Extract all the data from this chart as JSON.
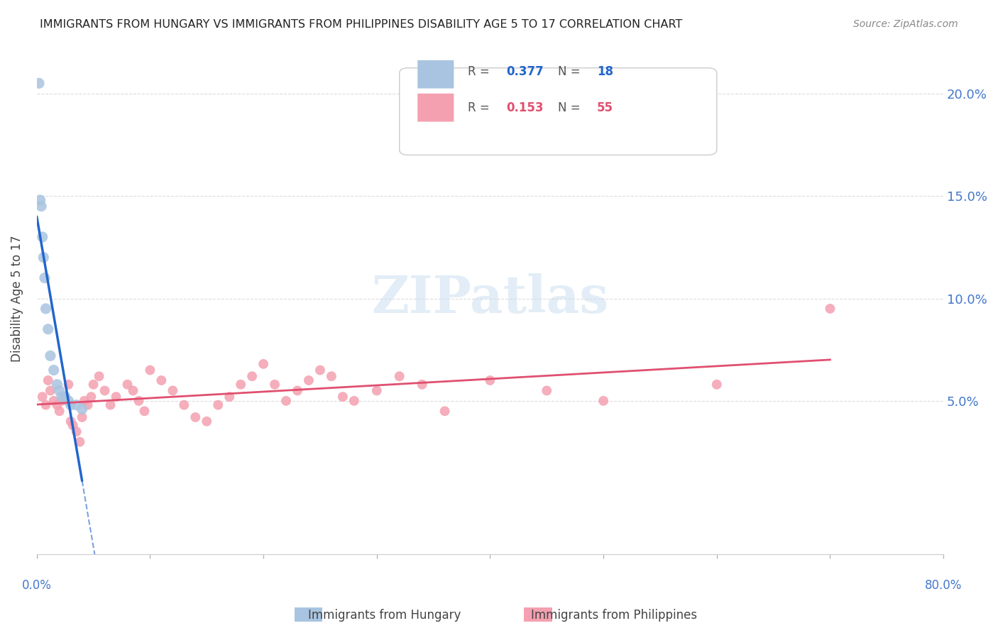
{
  "title": "IMMIGRANTS FROM HUNGARY VS IMMIGRANTS FROM PHILIPPINES DISABILITY AGE 5 TO 17 CORRELATION CHART",
  "source": "Source: ZipAtlas.com",
  "ylabel": "Disability Age 5 to 17",
  "ytick_labels": [
    "5.0%",
    "10.0%",
    "15.0%",
    "20.0%"
  ],
  "ytick_values": [
    0.05,
    0.1,
    0.15,
    0.2
  ],
  "xlim": [
    0.0,
    0.8
  ],
  "ylim": [
    -0.025,
    0.225
  ],
  "watermark": "ZIPatlas",
  "hungary_R": 0.377,
  "hungary_N": 18,
  "philippines_R": 0.153,
  "philippines_N": 55,
  "hungary_color": "#a8c4e0",
  "hungary_line_color": "#2266cc",
  "philippines_color": "#f4a0b0",
  "philippines_line_color": "#e05070",
  "hungary_x": [
    0.002,
    0.003,
    0.004,
    0.005,
    0.006,
    0.007,
    0.008,
    0.01,
    0.012,
    0.015,
    0.018,
    0.02,
    0.022,
    0.025,
    0.028,
    0.03,
    0.035,
    0.04
  ],
  "hungary_y": [
    0.205,
    0.148,
    0.145,
    0.13,
    0.12,
    0.11,
    0.095,
    0.085,
    0.072,
    0.065,
    0.058,
    0.055,
    0.052,
    0.052,
    0.05,
    0.048,
    0.048,
    0.046
  ],
  "philippines_x": [
    0.005,
    0.008,
    0.01,
    0.012,
    0.015,
    0.018,
    0.02,
    0.022,
    0.025,
    0.028,
    0.03,
    0.032,
    0.035,
    0.038,
    0.04,
    0.042,
    0.045,
    0.048,
    0.05,
    0.055,
    0.06,
    0.065,
    0.07,
    0.08,
    0.085,
    0.09,
    0.095,
    0.1,
    0.11,
    0.12,
    0.13,
    0.14,
    0.15,
    0.16,
    0.17,
    0.18,
    0.19,
    0.2,
    0.21,
    0.22,
    0.23,
    0.24,
    0.25,
    0.26,
    0.27,
    0.28,
    0.3,
    0.32,
    0.34,
    0.36,
    0.4,
    0.45,
    0.5,
    0.6,
    0.7
  ],
  "philippines_y": [
    0.052,
    0.048,
    0.06,
    0.055,
    0.05,
    0.048,
    0.045,
    0.05,
    0.052,
    0.058,
    0.04,
    0.038,
    0.035,
    0.03,
    0.042,
    0.05,
    0.048,
    0.052,
    0.058,
    0.062,
    0.055,
    0.048,
    0.052,
    0.058,
    0.055,
    0.05,
    0.045,
    0.065,
    0.06,
    0.055,
    0.048,
    0.042,
    0.04,
    0.048,
    0.052,
    0.058,
    0.062,
    0.068,
    0.058,
    0.05,
    0.055,
    0.06,
    0.065,
    0.062,
    0.052,
    0.05,
    0.055,
    0.062,
    0.058,
    0.045,
    0.06,
    0.055,
    0.05,
    0.058,
    0.095
  ],
  "background_color": "#ffffff",
  "grid_color": "#cccccc",
  "title_color": "#222222",
  "axis_label_color": "#4477cc"
}
